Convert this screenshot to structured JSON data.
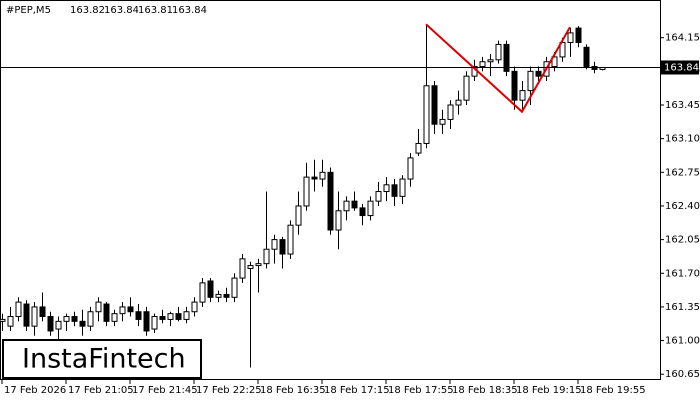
{
  "chart_data": {
    "type": "candlestick",
    "title": "#PEP,M5",
    "header_values": [
      163.82,
      163.84,
      163.81,
      163.84
    ],
    "logo": "InstaFintech",
    "categories": [
      "17 Feb 2026",
      null,
      null,
      null,
      null,
      null,
      null,
      null,
      "17 Feb 21:05",
      null,
      null,
      null,
      null,
      null,
      null,
      null,
      "17 Feb 21:45",
      null,
      null,
      null,
      null,
      null,
      null,
      null,
      "17 Feb 22:25",
      null,
      null,
      null,
      null,
      null,
      null,
      null,
      "18 Feb 16:35",
      null,
      null,
      null,
      null,
      null,
      null,
      null,
      "18 Feb 17:15",
      null,
      null,
      null,
      null,
      null,
      null,
      null,
      "18 Feb 17:55",
      null,
      null,
      null,
      null,
      null,
      null,
      null,
      "18 Feb 18:35",
      null,
      null,
      null,
      null,
      null,
      null,
      null,
      "18 Feb 19:15",
      null,
      null,
      null,
      null,
      null,
      null,
      null,
      "18 Feb 19:55",
      null,
      null,
      null
    ],
    "ohlc": [
      [
        161.2,
        161.28,
        161.1,
        161.22
      ],
      [
        161.15,
        161.35,
        161.1,
        161.25
      ],
      [
        161.25,
        161.45,
        161.2,
        161.4
      ],
      [
        161.38,
        161.42,
        161.1,
        161.15
      ],
      [
        161.15,
        161.4,
        161.05,
        161.35
      ],
      [
        161.35,
        161.5,
        161.2,
        161.25
      ],
      [
        161.25,
        161.3,
        161.05,
        161.1
      ],
      [
        161.12,
        161.25,
        161.0,
        161.2
      ],
      [
        161.2,
        161.28,
        161.1,
        161.25
      ],
      [
        161.25,
        161.3,
        161.15,
        161.2
      ],
      [
        161.2,
        161.32,
        161.05,
        161.15
      ],
      [
        161.15,
        161.35,
        161.1,
        161.3
      ],
      [
        161.3,
        161.45,
        161.2,
        161.4
      ],
      [
        161.38,
        161.4,
        161.15,
        161.2
      ],
      [
        161.2,
        161.32,
        161.15,
        161.28
      ],
      [
        161.28,
        161.4,
        161.2,
        161.35
      ],
      [
        161.35,
        161.45,
        161.25,
        161.3
      ],
      [
        161.3,
        161.38,
        161.15,
        161.22
      ],
      [
        161.3,
        161.35,
        161.05,
        161.1
      ],
      [
        161.12,
        161.28,
        161.08,
        161.25
      ],
      [
        161.25,
        161.32,
        161.18,
        161.22
      ],
      [
        161.22,
        161.3,
        161.15,
        161.28
      ],
      [
        161.28,
        161.35,
        161.2,
        161.22
      ],
      [
        161.22,
        161.35,
        161.18,
        161.3
      ],
      [
        161.3,
        161.45,
        161.25,
        161.4
      ],
      [
        161.4,
        161.65,
        161.35,
        161.6
      ],
      [
        161.62,
        161.65,
        161.4,
        161.45
      ],
      [
        161.45,
        161.52,
        161.4,
        161.48
      ],
      [
        161.48,
        161.55,
        161.4,
        161.45
      ],
      [
        161.45,
        161.7,
        161.4,
        161.65
      ],
      [
        161.65,
        161.9,
        161.6,
        161.85
      ],
      [
        161.75,
        161.82,
        160.72,
        161.78
      ],
      [
        161.78,
        161.85,
        161.5,
        161.8
      ],
      [
        161.8,
        162.55,
        161.75,
        161.95
      ],
      [
        161.95,
        162.1,
        161.8,
        162.05
      ],
      [
        162.05,
        162.08,
        161.75,
        161.9
      ],
      [
        161.9,
        162.25,
        161.85,
        162.2
      ],
      [
        162.2,
        162.55,
        162.1,
        162.4
      ],
      [
        162.4,
        162.85,
        162.35,
        162.7
      ],
      [
        162.7,
        162.88,
        162.55,
        162.68
      ],
      [
        162.68,
        162.88,
        162.6,
        162.75
      ],
      [
        162.75,
        162.8,
        162.1,
        162.15
      ],
      [
        162.15,
        162.55,
        161.95,
        162.35
      ],
      [
        162.35,
        162.5,
        162.25,
        162.45
      ],
      [
        162.45,
        162.55,
        162.35,
        162.38
      ],
      [
        162.38,
        162.42,
        162.2,
        162.3
      ],
      [
        162.3,
        162.5,
        162.25,
        162.45
      ],
      [
        162.45,
        162.65,
        162.4,
        162.55
      ],
      [
        162.55,
        162.7,
        162.45,
        162.62
      ],
      [
        162.62,
        162.68,
        162.4,
        162.5
      ],
      [
        162.5,
        162.72,
        162.42,
        162.68
      ],
      [
        162.68,
        162.95,
        162.6,
        162.9
      ],
      [
        162.95,
        163.2,
        162.92,
        163.05
      ],
      [
        163.05,
        164.28,
        163.0,
        163.65
      ],
      [
        163.65,
        163.7,
        163.15,
        163.25
      ],
      [
        163.25,
        163.4,
        163.15,
        163.3
      ],
      [
        163.3,
        163.5,
        163.2,
        163.45
      ],
      [
        163.45,
        163.6,
        163.35,
        163.5
      ],
      [
        163.5,
        163.8,
        163.45,
        163.75
      ],
      [
        163.75,
        163.92,
        163.7,
        163.85
      ],
      [
        163.85,
        163.95,
        163.8,
        163.9
      ],
      [
        163.9,
        163.98,
        163.75,
        163.92
      ],
      [
        163.92,
        164.12,
        163.88,
        164.08
      ],
      [
        164.08,
        164.12,
        163.75,
        163.8
      ],
      [
        163.8,
        163.85,
        163.4,
        163.5
      ],
      [
        163.5,
        163.7,
        163.38,
        163.6
      ],
      [
        163.6,
        163.85,
        163.45,
        163.8
      ],
      [
        163.8,
        163.85,
        163.7,
        163.75
      ],
      [
        163.75,
        163.95,
        163.7,
        163.9
      ],
      [
        163.85,
        164.0,
        163.8,
        163.95
      ],
      [
        163.95,
        164.15,
        163.9,
        164.1
      ],
      [
        164.1,
        164.25,
        163.95,
        164.2
      ],
      [
        164.25,
        164.27,
        164.05,
        164.1
      ],
      [
        164.05,
        164.08,
        163.82,
        163.85
      ],
      [
        163.85,
        163.9,
        163.78,
        163.82
      ],
      [
        163.82,
        163.84,
        163.81,
        163.84
      ]
    ],
    "current_price": 163.84,
    "pattern": {
      "color": "#e00000",
      "index": [
        53,
        65,
        71
      ],
      "values": [
        164.29,
        163.38,
        164.26
      ]
    },
    "ylim": [
      160.59,
      164.49
    ],
    "yticks": [
      160.65,
      {
        "value": 161.0,
        "label": "161.00"
      },
      161.35,
      {
        "value": 161.7,
        "label": "161.70"
      },
      162.05,
      {
        "value": 162.4,
        "label": "162.40"
      },
      162.75,
      {
        "value": 163.1,
        "label": "163.10"
      },
      163.45,
      {
        "value": 163.8,
        "label": "163.80"
      },
      164.15
    ]
  }
}
